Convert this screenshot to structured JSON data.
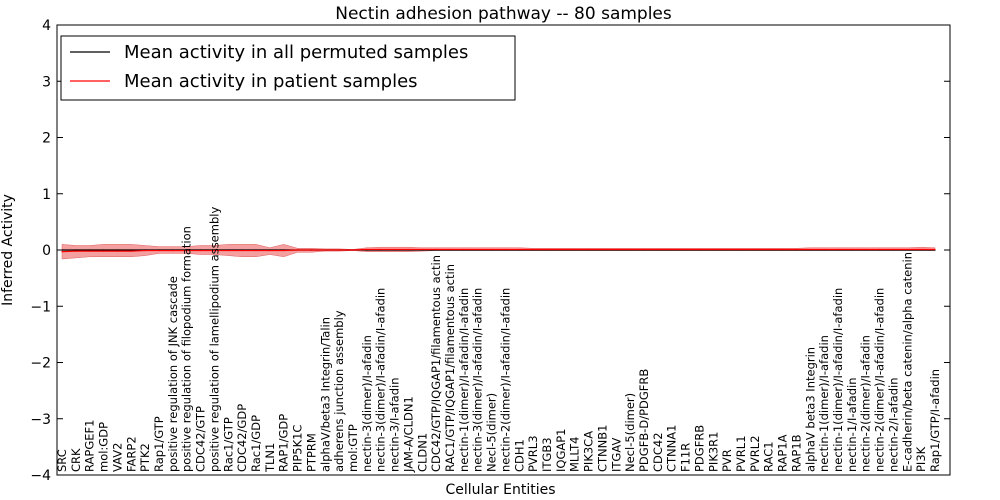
{
  "chart_data": {
    "type": "line",
    "title": "Nectin adhesion pathway -- 80 samples",
    "xlabel": "Cellular Entities",
    "ylabel": "Inferred Activity",
    "ylim": [
      -4,
      4
    ],
    "yticks": [
      -4,
      -3,
      -2,
      -1,
      0,
      1,
      2,
      3,
      4
    ],
    "ytick_labels": [
      "−4",
      "−3",
      "−2",
      "−1",
      "0",
      "1",
      "2",
      "3",
      "4"
    ],
    "legend": {
      "placement": "top-left",
      "entries": [
        {
          "label": "Mean activity in all permuted samples",
          "color": "#000000"
        },
        {
          "label": "Mean activity in patient samples",
          "color": "#ff0000"
        }
      ]
    },
    "categories": [
      "SRC",
      "CRK",
      "RAPGEF1",
      "mol:GDP",
      "VAV2",
      "FARP2",
      "PTK2",
      "Rap1/GTP",
      "positive regulation of JNK cascade",
      "positive regulation of filopodium formation",
      "CDC42/GTP",
      "positive regulation of lamellipodium assembly",
      "Rac1/GTP",
      "CDC42/GDP",
      "Rac1/GDP",
      "TLN1",
      "RAP1/GDP",
      "PIP5K1C",
      "PTPRM",
      "alphaV/beta3 Integrin/Talin",
      "adherens junction assembly",
      "mol:GTP",
      "nectin-3(dimer)/I-afadin",
      "nectin-3(dimer)/I-afadin/I-afadin",
      "nectin-3/I-afadin",
      "JAM-A/CLDN1",
      "CLDN1",
      "CDC42/GTP/IQGAP1/filamentous actin",
      "RAC1/GTP/IQGAP1/filamentous actin",
      "nectin-1(dimer)/I-afadin/I-afadin",
      "nectin-3(dimer)/I-afadin/I-afadin",
      "Necl-5(dimer)",
      "nectin-2(dimer)/I-afadin/I-afadin",
      "CDH1",
      "PVRL3",
      "ITGB3",
      "IQGAP1",
      "MLLT4",
      "PIK3CA",
      "CTNNB1",
      "ITGAV",
      "Necl-5(dimer)",
      "PDGFB-D/PDGFRB",
      "CDC42",
      "CTNNA1",
      "F11R",
      "PDGFRB",
      "PIK3R1",
      "PVR",
      "PVRL1",
      "PVRL2",
      "RAC1",
      "RAP1A",
      "RAP1B",
      "alphaV beta3 Integrin",
      "nectin-1(dimer)/I-afadin",
      "nectin-1(dimer)/I-afadin/I-afadin",
      "nectin-1/I-afadin",
      "nectin-2(dimer)/I-afadin",
      "nectin-2(dimer)/I-afadin/I-afadin",
      "nectin-2/I-afadin",
      "E-cadherin/beta catenin/alpha catenin",
      "PI3K",
      "Rap1/GTP/I-afadin"
    ],
    "series": [
      {
        "name": "Mean activity in all permuted samples",
        "color": "#000000",
        "values": [
          0,
          0,
          0,
          0,
          0,
          0,
          0,
          0,
          0,
          0,
          0,
          0,
          0,
          0,
          0,
          0,
          0,
          0,
          0,
          0,
          0,
          0,
          0,
          0,
          0,
          0,
          0,
          0,
          0,
          0,
          0,
          0,
          0,
          0,
          0,
          0,
          0,
          0,
          0,
          0,
          0,
          0,
          0,
          0,
          0,
          0,
          0,
          0,
          0,
          0,
          0,
          0,
          0,
          0,
          0,
          0,
          0,
          0,
          0,
          0,
          0,
          0,
          0,
          0
        ]
      },
      {
        "name": "Mean activity in patient samples",
        "color": "#ff0000",
        "values": [
          -0.03,
          -0.02,
          -0.02,
          -0.02,
          -0.02,
          -0.02,
          -0.01,
          -0.01,
          -0.01,
          -0.01,
          -0.01,
          -0.01,
          -0.01,
          -0.01,
          -0.01,
          -0.01,
          -0.01,
          0,
          0,
          0,
          0,
          0,
          0.01,
          0.01,
          0.01,
          0.01,
          0.01,
          0.01,
          0.01,
          0.01,
          0.01,
          0.01,
          0.01,
          0.01,
          0.01,
          0.01,
          0.01,
          0.01,
          0.01,
          0.01,
          0.01,
          0.01,
          0.01,
          0.01,
          0.01,
          0.01,
          0.01,
          0.01,
          0.01,
          0.01,
          0.01,
          0.01,
          0.01,
          0.01,
          0.01,
          0.01,
          0.01,
          0.01,
          0.01,
          0.01,
          0.01,
          0.01,
          0.01,
          0.01
        ],
        "lower": [
          -0.16,
          -0.14,
          -0.12,
          -0.12,
          -0.12,
          -0.12,
          -0.1,
          -0.06,
          -0.06,
          -0.06,
          -0.08,
          -0.08,
          -0.1,
          -0.12,
          -0.12,
          -0.08,
          -0.12,
          -0.04,
          -0.04,
          -0.02,
          -0.02,
          -0.01,
          -0.03,
          -0.03,
          -0.03,
          -0.03,
          -0.02,
          -0.01,
          -0.01,
          -0.01,
          -0.01,
          -0.01,
          -0.01,
          -0.01,
          -0.01,
          -0.01,
          -0.01,
          -0.01,
          -0.01,
          -0.01,
          -0.01,
          -0.01,
          -0.01,
          -0.01,
          -0.01,
          -0.01,
          -0.01,
          -0.01,
          -0.01,
          -0.01,
          -0.01,
          -0.01,
          -0.01,
          -0.01,
          -0.01,
          -0.01,
          -0.01,
          -0.01,
          -0.01,
          -0.01,
          -0.01,
          -0.01,
          -0.01,
          -0.01
        ],
        "upper": [
          0.1,
          0.08,
          0.08,
          0.1,
          0.1,
          0.1,
          0.08,
          0.06,
          0.06,
          0.06,
          0.08,
          0.08,
          0.1,
          0.1,
          0.1,
          0.04,
          0.1,
          0.03,
          0.03,
          0.02,
          0.02,
          0.01,
          0.04,
          0.05,
          0.05,
          0.05,
          0.04,
          0.04,
          0.04,
          0.04,
          0.04,
          0.04,
          0.04,
          0.04,
          0.03,
          0.03,
          0.03,
          0.03,
          0.03,
          0.03,
          0.03,
          0.03,
          0.03,
          0.03,
          0.03,
          0.03,
          0.03,
          0.03,
          0.03,
          0.03,
          0.03,
          0.03,
          0.03,
          0.03,
          0.04,
          0.04,
          0.04,
          0.04,
          0.04,
          0.04,
          0.04,
          0.04,
          0.05,
          0.04
        ]
      }
    ]
  }
}
